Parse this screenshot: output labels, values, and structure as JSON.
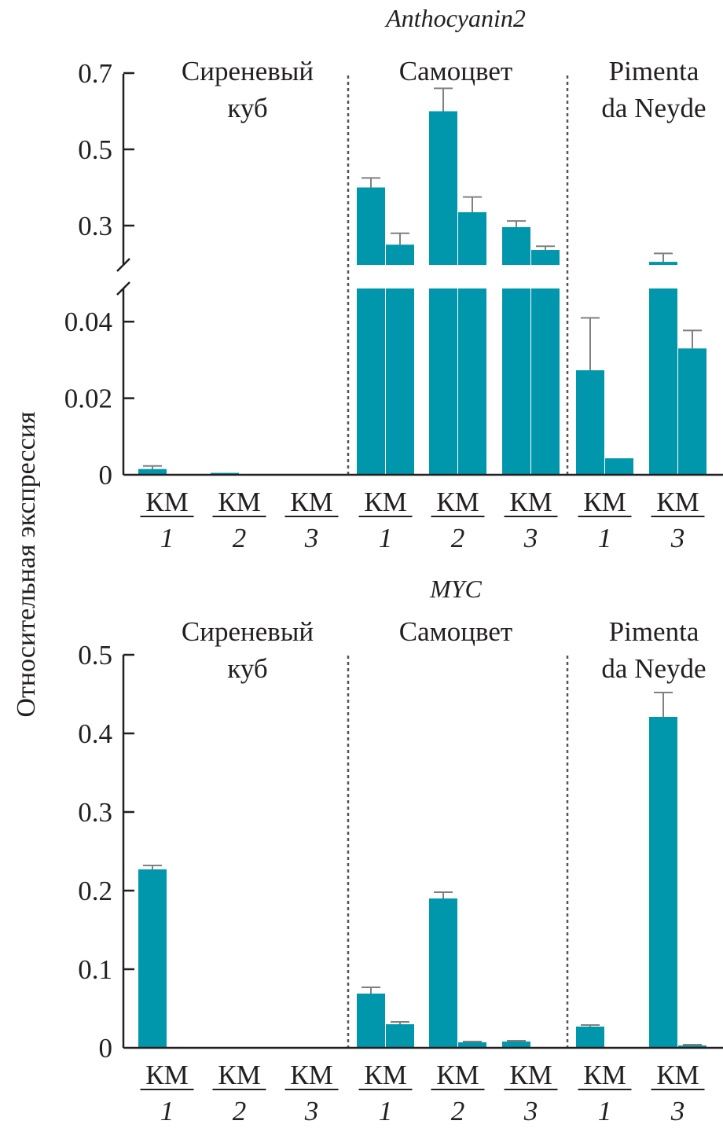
{
  "y_axis_label": "Относительная экспрессия",
  "bar_color": "#0097ad",
  "error_color": "#808080",
  "chart_data": [
    {
      "type": "bar",
      "title": "Anthocyanin2",
      "ylabel": "Относительная экспрессия",
      "broken_axis": true,
      "lower_ylim": [
        0,
        0.049
      ],
      "upper_ylim": [
        0.2,
        0.7
      ],
      "lower_ticks": [
        {
          "value": 0,
          "label": "0"
        },
        {
          "value": 0.02,
          "label": "0.02"
        },
        {
          "value": 0.04,
          "label": "0.04"
        }
      ],
      "upper_ticks": [
        {
          "value": 0.3,
          "label": "0.3"
        },
        {
          "value": 0.5,
          "label": "0.5"
        },
        {
          "value": 0.7,
          "label": "0.7"
        }
      ],
      "groups": [
        {
          "name": "Сиреневый куб",
          "name_lines": [
            "Сиреневый",
            "куб"
          ],
          "categories": [
            {
              "label": "КМ",
              "num": "1",
              "bars": [
                {
                  "value": 0.0015,
                  "error": 0.0008
                },
                {
                  "value": 0,
                  "error": 0
                }
              ]
            },
            {
              "label": "КМ",
              "num": "2",
              "bars": [
                {
                  "value": 0.0005,
                  "error": 0.0002
                },
                {
                  "value": 0,
                  "error": 0
                }
              ]
            },
            {
              "label": "КМ",
              "num": "3",
              "bars": [
                {
                  "value": 0,
                  "error": 0
                },
                {
                  "value": 0,
                  "error": 0
                }
              ]
            }
          ]
        },
        {
          "name": "Самоцвет",
          "name_lines": [
            "Самоцвет"
          ],
          "categories": [
            {
              "label": "КМ",
              "num": "1",
              "bars": [
                {
                  "value": 0.4,
                  "error": 0.025
                },
                {
                  "value": 0.25,
                  "error": 0.03
                }
              ]
            },
            {
              "label": "КМ",
              "num": "2",
              "bars": [
                {
                  "value": 0.6,
                  "error": 0.06
                },
                {
                  "value": 0.335,
                  "error": 0.04
                }
              ]
            },
            {
              "label": "КМ",
              "num": "3",
              "bars": [
                {
                  "value": 0.296,
                  "error": 0.016
                },
                {
                  "value": 0.236,
                  "error": 0.01
                }
              ]
            }
          ]
        },
        {
          "name": "Pimenta da Neyde",
          "name_lines": [
            "Pimenta",
            "da Neyde"
          ],
          "categories": [
            {
              "label": "КМ",
              "num": "1",
              "bars": [
                {
                  "value": 0.0273,
                  "error": 0.0137
                },
                {
                  "value": 0.0043,
                  "error": 0.0001
                }
              ]
            },
            {
              "label": "КМ",
              "num": "3",
              "bars": [
                {
                  "value": 0.205,
                  "error": 0.022
                },
                {
                  "value": 0.033,
                  "error": 0.0047
                }
              ]
            }
          ]
        }
      ]
    },
    {
      "type": "bar",
      "title": "MYC",
      "ylabel": "Относительная экспрессия",
      "broken_axis": false,
      "ylim": [
        0,
        0.5
      ],
      "ticks": [
        {
          "value": 0,
          "label": "0"
        },
        {
          "value": 0.1,
          "label": "0.1"
        },
        {
          "value": 0.2,
          "label": "0.2"
        },
        {
          "value": 0.3,
          "label": "0.3"
        },
        {
          "value": 0.4,
          "label": "0.4"
        },
        {
          "value": 0.5,
          "label": "0.5"
        }
      ],
      "groups": [
        {
          "name": "Сиреневый куб",
          "name_lines": [
            "Сиреневый",
            "куб"
          ],
          "categories": [
            {
              "label": "КМ",
              "num": "1",
              "bars": [
                {
                  "value": 0.227,
                  "error": 0.005
                },
                {
                  "value": 0,
                  "error": 0
                }
              ]
            },
            {
              "label": "КМ",
              "num": "2",
              "bars": [
                {
                  "value": 0.001,
                  "error": 0
                },
                {
                  "value": 0,
                  "error": 0
                }
              ]
            },
            {
              "label": "КМ",
              "num": "3",
              "bars": [
                {
                  "value": 0,
                  "error": 0
                },
                {
                  "value": 0,
                  "error": 0
                }
              ]
            }
          ]
        },
        {
          "name": "Самоцвет",
          "name_lines": [
            "Самоцвет"
          ],
          "categories": [
            {
              "label": "КМ",
              "num": "1",
              "bars": [
                {
                  "value": 0.069,
                  "error": 0.008
                },
                {
                  "value": 0.03,
                  "error": 0.003
                }
              ]
            },
            {
              "label": "КМ",
              "num": "2",
              "bars": [
                {
                  "value": 0.19,
                  "error": 0.008
                },
                {
                  "value": 0.007,
                  "error": 0.001
                }
              ]
            },
            {
              "label": "КМ",
              "num": "3",
              "bars": [
                {
                  "value": 0.008,
                  "error": 0.001
                },
                {
                  "value": 0,
                  "error": 0
                }
              ]
            }
          ]
        },
        {
          "name": "Pimenta da Neyde",
          "name_lines": [
            "Pimenta",
            "da Neyde"
          ],
          "categories": [
            {
              "label": "КМ",
              "num": "1",
              "bars": [
                {
                  "value": 0.027,
                  "error": 0.002
                },
                {
                  "value": 0,
                  "error": 0
                }
              ]
            },
            {
              "label": "КМ",
              "num": "3",
              "bars": [
                {
                  "value": 0.421,
                  "error": 0.031
                },
                {
                  "value": 0.003,
                  "error": 0.001
                }
              ]
            }
          ]
        }
      ]
    }
  ]
}
